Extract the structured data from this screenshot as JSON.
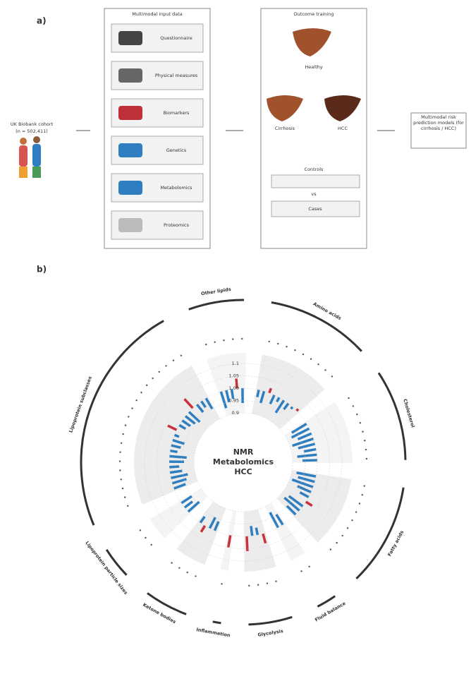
{
  "panel_a": {
    "label": "a)",
    "cohort": {
      "title": "UK Biobank cohort",
      "n": "(n = 502,411)"
    },
    "input_title": "Multimodal input data",
    "inputs": [
      "Questionnaire",
      "Physical measures",
      "Biomarkers",
      "Genetics",
      "Metabolomics",
      "Proteomics"
    ],
    "outcome_title": "Outcome training",
    "livers": [
      "Healthy",
      "Cirrhosis",
      "HCC"
    ],
    "vs": "vs",
    "controls": "Controls",
    "cases": "Cases",
    "output": "Multimodal risk prediction models (for cirrhosis / HCC)"
  },
  "chart_data": {
    "type": "circular-bar",
    "panel_label": "b)",
    "center_title": [
      "NMR",
      "Metabolomics",
      "HCC"
    ],
    "ylim": [
      0.9,
      1.1
    ],
    "yticks": [
      0.9,
      0.95,
      {
        "value": 1,
        "label": "1.00"
      },
      1.05,
      1.1
    ],
    "colors": {
      "below": "#2f7fc0",
      "above": "#c8303a"
    },
    "groups": [
      {
        "name": "Amino acids",
        "values": [
          0.97,
          0.95,
          1.02,
          0.96,
          0.98,
          0.94,
          0.97,
          0.99,
          1.01
        ]
      },
      {
        "name": "Cholesterol",
        "values": [
          0.93,
          0.92,
          0.94,
          0.91,
          0.93,
          0.95,
          0.92,
          0.94
        ]
      },
      {
        "name": "Fatty acids",
        "values": [
          0.92,
          0.93,
          0.91,
          0.94,
          0.96,
          1.03,
          0.93,
          0.92,
          0.95
        ]
      },
      {
        "name": "Fluid balance",
        "values": [
          0.95,
          0.93
        ]
      },
      {
        "name": "Glycolysis",
        "values": [
          1.04,
          0.97,
          0.96,
          1.06
        ]
      },
      {
        "name": "Inflammation",
        "values": [
          1.05
        ]
      },
      {
        "name": "Ketone bodies",
        "values": [
          0.96,
          0.95,
          1.03,
          0.97
        ]
      },
      {
        "name": "Lipoprotein particle sizes",
        "values": [
          0.94,
          0.96,
          0.95
        ]
      },
      {
        "name": "Lipoprotein subclasses",
        "values": [
          0.95,
          0.94,
          0.93,
          0.95,
          0.96,
          0.94,
          0.93,
          0.97,
          0.96,
          0.95,
          0.98,
          1.04,
          0.97,
          0.96,
          0.95,
          0.94,
          1.05,
          0.96,
          0.97,
          0.95
        ]
      },
      {
        "name": "Other lipids",
        "values": [
          0.93,
          0.95,
          0.96,
          1.04,
          0.94
        ]
      }
    ]
  }
}
